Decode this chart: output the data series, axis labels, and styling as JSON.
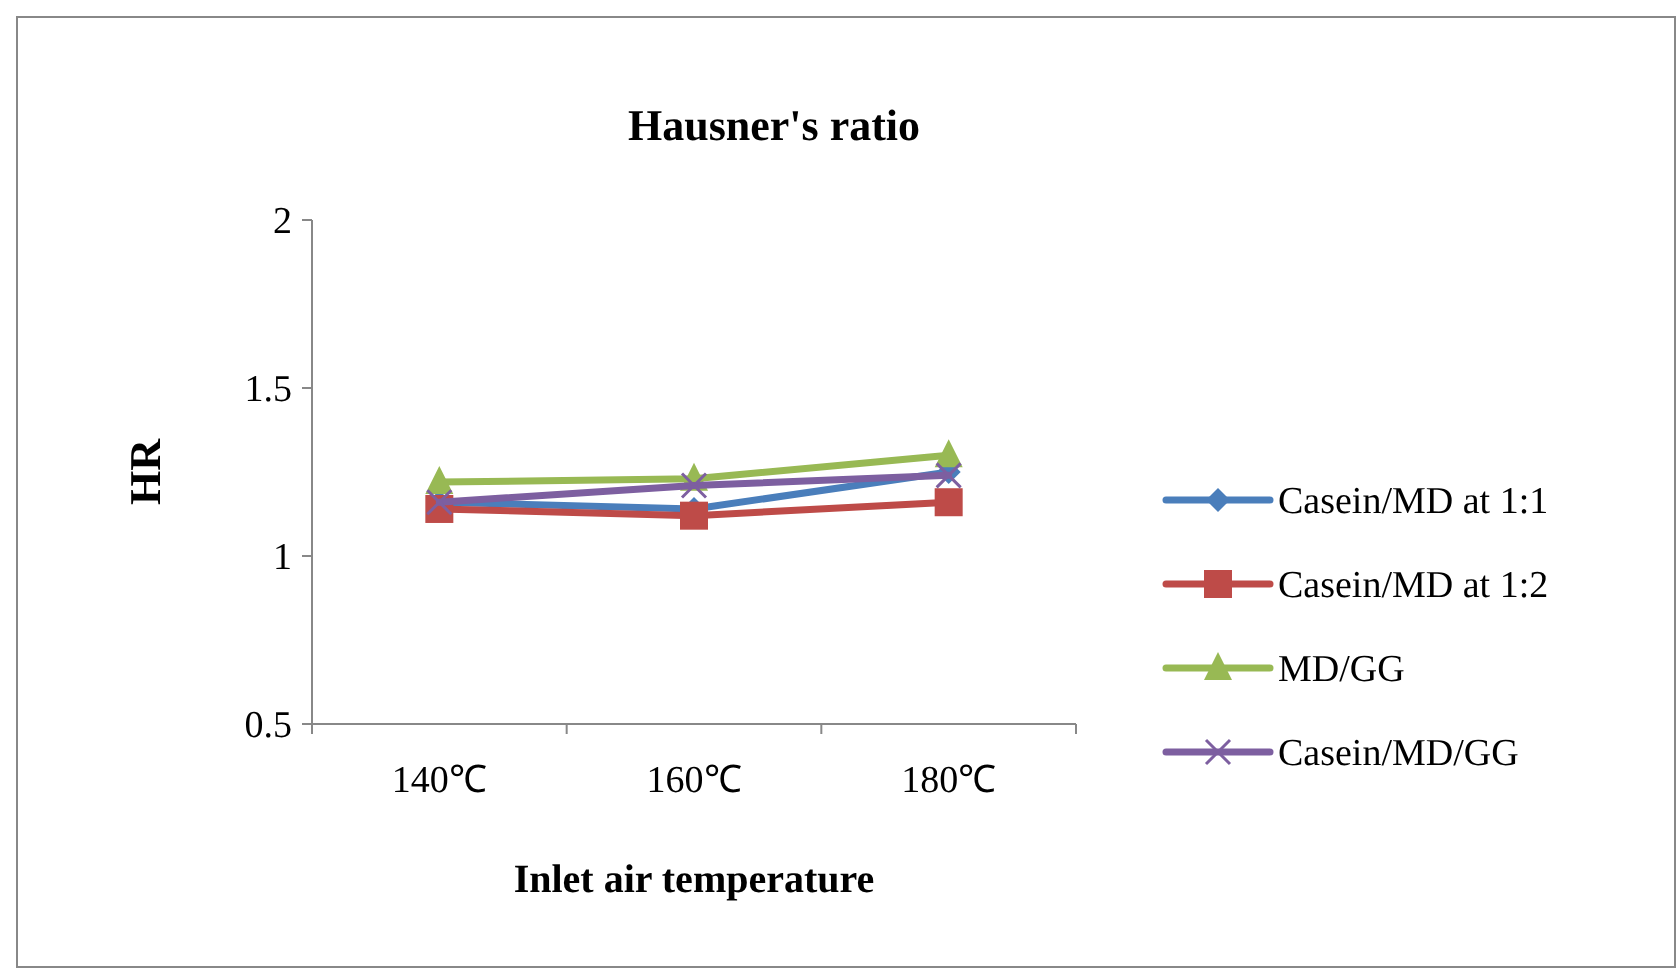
{
  "chart_data": {
    "type": "line",
    "title": "Hausner's ratio",
    "xlabel": "Inlet air temperature",
    "ylabel": "HR",
    "categories": [
      "140℃",
      "160℃",
      "180℃"
    ],
    "series": [
      {
        "name": "Casein/MD at 1:1",
        "color": "#4a7ebb",
        "values": [
          1.16,
          1.14,
          1.25
        ],
        "marker": "diamond"
      },
      {
        "name": "Casein/MD at 1:2",
        "color": "#be4b48",
        "values": [
          1.14,
          1.12,
          1.16
        ],
        "marker": "square"
      },
      {
        "name": "MD/GG",
        "color": "#98b954",
        "values": [
          1.22,
          1.23,
          1.3
        ],
        "marker": "triangle"
      },
      {
        "name": "Casein/MD/GG",
        "color": "#7d5fa0",
        "values": [
          1.16,
          1.21,
          1.24
        ],
        "marker": "cross"
      }
    ],
    "ylim": [
      0.5,
      2
    ],
    "yticks": [
      0.5,
      1,
      1.5,
      2
    ],
    "grid": false,
    "legend": "right",
    "line_style": "solid"
  }
}
